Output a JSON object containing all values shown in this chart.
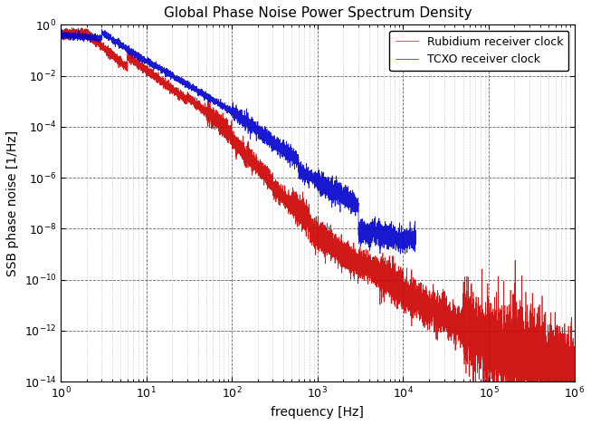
{
  "title": "Global Phase Noise Power Spectrum Density",
  "xlabel": "frequency [Hz]",
  "ylabel": "SSB phase noise [1/Hz]",
  "xlim": [
    1,
    1000000
  ],
  "ylim_low": 1e-14,
  "ylim_high": 1,
  "legend_tcxo": "TCXO receiver clock",
  "legend_rubidium": "Rubidium receiver clock",
  "tcxo_color": "#0000cc",
  "rubidium_color": "#cc0000",
  "background_color": "white",
  "title_fontsize": 11,
  "label_fontsize": 10,
  "tick_fontsize": 9,
  "legend_fontsize": 9
}
